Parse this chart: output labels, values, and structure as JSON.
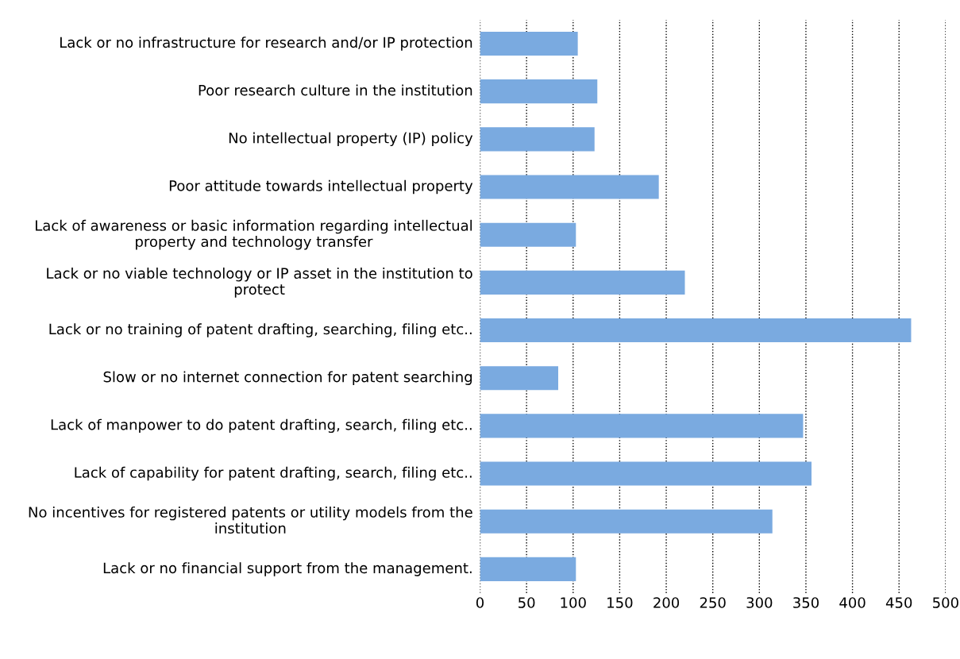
{
  "chart_data": {
    "type": "bar",
    "orientation": "horizontal",
    "categories": [
      "Lack or no infrastructure for research and/or IP protection",
      "Poor research culture in the institution",
      "No intellectual property (IP) policy",
      "Poor attitude towards intellectual property",
      "Lack of awareness or basic information regarding intellectual property and technology transfer",
      "Lack or no viable technology or IP asset in the institution to protect",
      "Lack or no training of patent drafting, searching, filing etc..",
      "Slow or no internet connection for patent searching",
      "Lack of manpower to do patent drafting, search, filing etc..",
      "Lack of capability for patent drafting, search, filing etc..",
      "No incentives for registered patents or utility models from the institution",
      "Lack or no financial support from the management."
    ],
    "values": [
      105,
      126,
      123,
      192,
      103,
      220,
      463,
      84,
      347,
      356,
      314,
      103
    ],
    "color": "#7aaae0",
    "xlim": [
      0,
      500
    ],
    "xticks": [
      0,
      50,
      100,
      150,
      200,
      250,
      300,
      350,
      400,
      450,
      500
    ],
    "grid": "x",
    "line_style": "dotted"
  }
}
